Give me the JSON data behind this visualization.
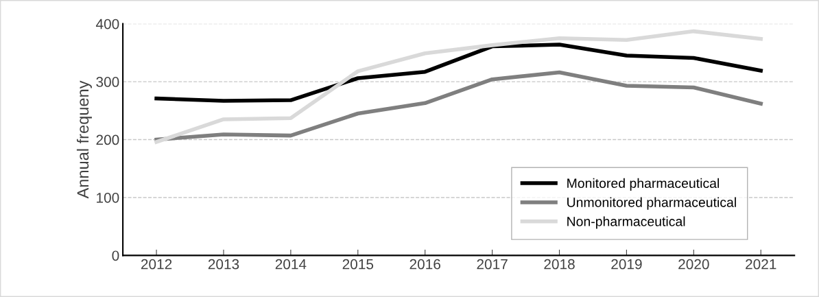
{
  "chart_data": {
    "type": "line",
    "ylabel": "Annual frequeny",
    "categories": [
      "2012",
      "2013",
      "2014",
      "2015",
      "2016",
      "2017",
      "2018",
      "2019",
      "2020",
      "2021"
    ],
    "series": [
      {
        "name": "Monitored pharmaceutical",
        "color": "#000000",
        "values": [
          271,
          267,
          268,
          306,
          317,
          361,
          364,
          345,
          341,
          319
        ]
      },
      {
        "name": "Unmonitored pharmaceutical",
        "color": "#7f7f7f",
        "values": [
          200,
          209,
          207,
          245,
          263,
          304,
          316,
          293,
          290,
          262
        ]
      },
      {
        "name": "Non-pharmaceutical",
        "color": "#d9d9d9",
        "values": [
          196,
          235,
          237,
          318,
          349,
          363,
          375,
          372,
          387,
          374
        ]
      }
    ],
    "ylim": [
      0,
      400
    ],
    "yticks": [
      0,
      100,
      200,
      300,
      400
    ],
    "grid": "y",
    "legend": "bottom right",
    "marker": "none",
    "line_style": "solid"
  }
}
